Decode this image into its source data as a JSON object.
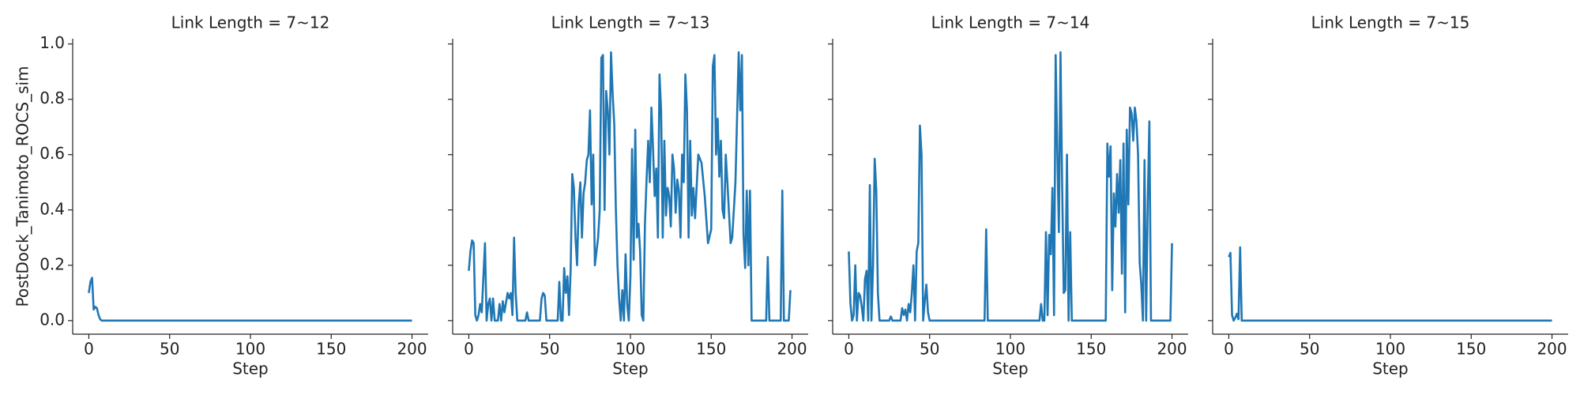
{
  "chart_data": [
    {
      "type": "line",
      "title": "Link Length = 7~12",
      "xlabel": "Step",
      "ylabel": "PostDock_Tanimoto_ROCS_sim",
      "xlim": [
        -10,
        210
      ],
      "xticks": [
        0,
        50,
        100,
        150,
        200
      ],
      "ylim": [
        -0.049,
        1.019
      ],
      "yticks": [
        {
          "value": 0,
          "label": "0.0"
        },
        {
          "value": 0.2,
          "label": "0.2"
        },
        {
          "value": 0.4,
          "label": "0.4"
        },
        {
          "value": 0.6,
          "label": "0.6"
        },
        {
          "value": 0.8,
          "label": "0.8"
        },
        {
          "value": 1.0,
          "label": "1.0"
        }
      ],
      "x": [
        0,
        1,
        2,
        3,
        4,
        5,
        6,
        7,
        8,
        9,
        200
      ],
      "series": [
        {
          "color": "#1f77b4",
          "values": [
            0.1,
            0.14,
            0.155,
            0.04,
            0.05,
            0.045,
            0.02,
            0.005,
            0,
            0,
            0
          ]
        }
      ]
    },
    {
      "type": "line",
      "title": "Link Length = 7~13",
      "xlabel": "Step",
      "xlim": [
        -10,
        210
      ],
      "xticks": [
        0,
        50,
        100,
        150,
        200
      ],
      "ylim": [
        -0.049,
        1.019
      ],
      "yticks": [
        0,
        0.2,
        0.4,
        0.6,
        0.8,
        1.0
      ],
      "x": [
        0,
        1,
        2,
        3,
        4,
        5,
        6,
        7,
        8,
        10,
        11,
        12,
        13,
        14,
        15,
        16,
        18,
        19,
        20,
        21,
        22,
        24,
        25,
        26,
        27,
        28,
        29,
        30,
        35,
        36,
        37,
        44,
        45,
        46,
        47,
        48,
        55,
        56,
        57,
        58,
        59,
        60,
        61,
        62,
        63,
        64,
        65,
        66,
        67,
        68,
        69,
        70,
        71,
        72,
        73,
        74,
        75,
        76,
        77,
        78,
        79,
        80,
        81,
        82,
        83,
        84,
        85,
        86,
        87,
        88,
        89,
        90,
        91,
        92,
        93,
        94,
        95,
        96,
        97,
        98,
        99,
        100,
        101,
        102,
        103,
        104,
        105,
        106,
        107,
        108,
        109,
        110,
        111,
        112,
        113,
        114,
        115,
        116,
        117,
        118,
        119,
        120,
        121,
        122,
        123,
        124,
        125,
        126,
        127,
        128,
        129,
        130,
        131,
        132,
        133,
        134,
        135,
        136,
        137,
        138,
        139,
        140,
        142,
        144,
        146,
        148,
        150,
        151,
        152,
        153,
        154,
        155,
        156,
        157,
        158,
        159,
        160,
        162,
        163,
        165,
        167,
        168,
        169,
        170,
        171,
        172,
        173,
        174,
        175,
        176,
        184,
        185,
        186,
        193,
        194,
        195,
        198,
        199
      ],
      "series": [
        {
          "color": "#1f77b4",
          "values": [
            0.18,
            0.25,
            0.29,
            0.28,
            0.02,
            0,
            0.02,
            0.06,
            0.03,
            0.28,
            0,
            0.06,
            0.08,
            0,
            0.08,
            0,
            0,
            0.06,
            0,
            0.07,
            0.03,
            0.1,
            0.08,
            0.1,
            0.02,
            0.3,
            0.1,
            0,
            0,
            0.03,
            0,
            0,
            0.08,
            0.1,
            0.09,
            0,
            0,
            0.14,
            0,
            0,
            0.19,
            0.1,
            0.16,
            0.02,
            0.18,
            0.53,
            0.48,
            0.3,
            0.2,
            0.42,
            0.5,
            0.3,
            0.46,
            0.5,
            0.58,
            0.6,
            0.76,
            0.42,
            0.6,
            0.2,
            0.25,
            0.3,
            0.4,
            0.95,
            0.96,
            0.4,
            0.83,
            0.76,
            0.6,
            0.97,
            0.82,
            0.71,
            0.4,
            0.2,
            0.08,
            0,
            0.11,
            0,
            0.24,
            0.06,
            0,
            0.16,
            0.62,
            0.22,
            0.69,
            0.3,
            0.35,
            0.25,
            0.02,
            0,
            0.35,
            0.51,
            0.65,
            0.5,
            0.77,
            0.62,
            0.45,
            0.55,
            0.3,
            0.89,
            0.76,
            0.3,
            0.65,
            0.38,
            0.48,
            0.45,
            0.34,
            0.6,
            0.55,
            0.39,
            0.51,
            0.47,
            0.3,
            0.6,
            0.5,
            0.89,
            0.76,
            0.3,
            0.65,
            0.38,
            0.48,
            0.37,
            0.6,
            0.57,
            0.45,
            0.28,
            0.33,
            0.92,
            0.96,
            0.6,
            0.73,
            0.52,
            0.65,
            0.4,
            0.37,
            0.6,
            0.5,
            0.28,
            0.3,
            0.5,
            0.97,
            0.76,
            0.96,
            0.31,
            0.19,
            0.47,
            0.2,
            0.47,
            0,
            0,
            0,
            0.23,
            0,
            0,
            0.47,
            0,
            0,
            0.11
          ]
        }
      ]
    },
    {
      "type": "line",
      "title": "Link Length = 7~14",
      "xlabel": "Step",
      "xlim": [
        -10,
        210
      ],
      "xticks": [
        0,
        50,
        100,
        150,
        200
      ],
      "ylim": [
        -0.049,
        1.019
      ],
      "yticks": [
        0,
        0.2,
        0.4,
        0.6,
        0.8,
        1.0
      ],
      "x": [
        0,
        1,
        2,
        3,
        4,
        5,
        6,
        7,
        8,
        9,
        10,
        11,
        12,
        13,
        14,
        15,
        16,
        17,
        18,
        19,
        25,
        26,
        27,
        32,
        33,
        34,
        35,
        36,
        37,
        38,
        39,
        40,
        41,
        42,
        43,
        44,
        45,
        46,
        47,
        48,
        49,
        50,
        84,
        85,
        86,
        118,
        119,
        120,
        121,
        122,
        123,
        124,
        125,
        126,
        127,
        128,
        129,
        130,
        131,
        132,
        133,
        134,
        135,
        136,
        137,
        138,
        159,
        160,
        161,
        162,
        163,
        164,
        165,
        166,
        167,
        168,
        169,
        170,
        171,
        172,
        173,
        174,
        175,
        176,
        177,
        178,
        179,
        180,
        181,
        182,
        183,
        184,
        185,
        186,
        187,
        199,
        200
      ],
      "series": [
        {
          "color": "#1f77b4",
          "values": [
            0.25,
            0.06,
            0,
            0.02,
            0.2,
            0,
            0.1,
            0.09,
            0.05,
            0,
            0.15,
            0.18,
            0,
            0.49,
            0,
            0.2,
            0.585,
            0.47,
            0.1,
            0,
            0,
            0.015,
            0,
            0,
            0.045,
            0.02,
            0.04,
            0,
            0.06,
            0.03,
            0.1,
            0.2,
            0,
            0.25,
            0.28,
            0.705,
            0.6,
            0,
            0.07,
            0.13,
            0.03,
            0,
            0,
            0.33,
            0,
            0,
            0.06,
            0,
            0,
            0.32,
            0.02,
            0.31,
            0.24,
            0.48,
            0.02,
            0.96,
            0.62,
            0.32,
            0.97,
            0.5,
            0.1,
            0.11,
            0.6,
            0,
            0.32,
            0,
            0,
            0.64,
            0.52,
            0.63,
            0.11,
            0.46,
            0.34,
            0.53,
            0.39,
            0.58,
            0.17,
            0.64,
            0.03,
            0.69,
            0.42,
            0.77,
            0.75,
            0.65,
            0.77,
            0.72,
            0.6,
            0.21,
            0.13,
            0,
            0.58,
            0,
            0.43,
            0.72,
            0,
            0,
            0.28
          ]
        }
      ]
    },
    {
      "type": "line",
      "title": "Link Length = 7~15",
      "xlabel": "Step",
      "xlim": [
        -10,
        210
      ],
      "xticks": [
        0,
        50,
        100,
        150,
        200
      ],
      "ylim": [
        -0.049,
        1.019
      ],
      "yticks": [
        0,
        0.2,
        0.4,
        0.6,
        0.8,
        1.0
      ],
      "x": [
        0,
        1,
        2,
        3,
        4,
        5,
        6,
        7,
        8,
        200
      ],
      "series": [
        {
          "color": "#1f77b4",
          "values": [
            0.23,
            0.245,
            0.02,
            0,
            0.01,
            0.025,
            0.005,
            0.265,
            0,
            0
          ]
        }
      ]
    }
  ]
}
